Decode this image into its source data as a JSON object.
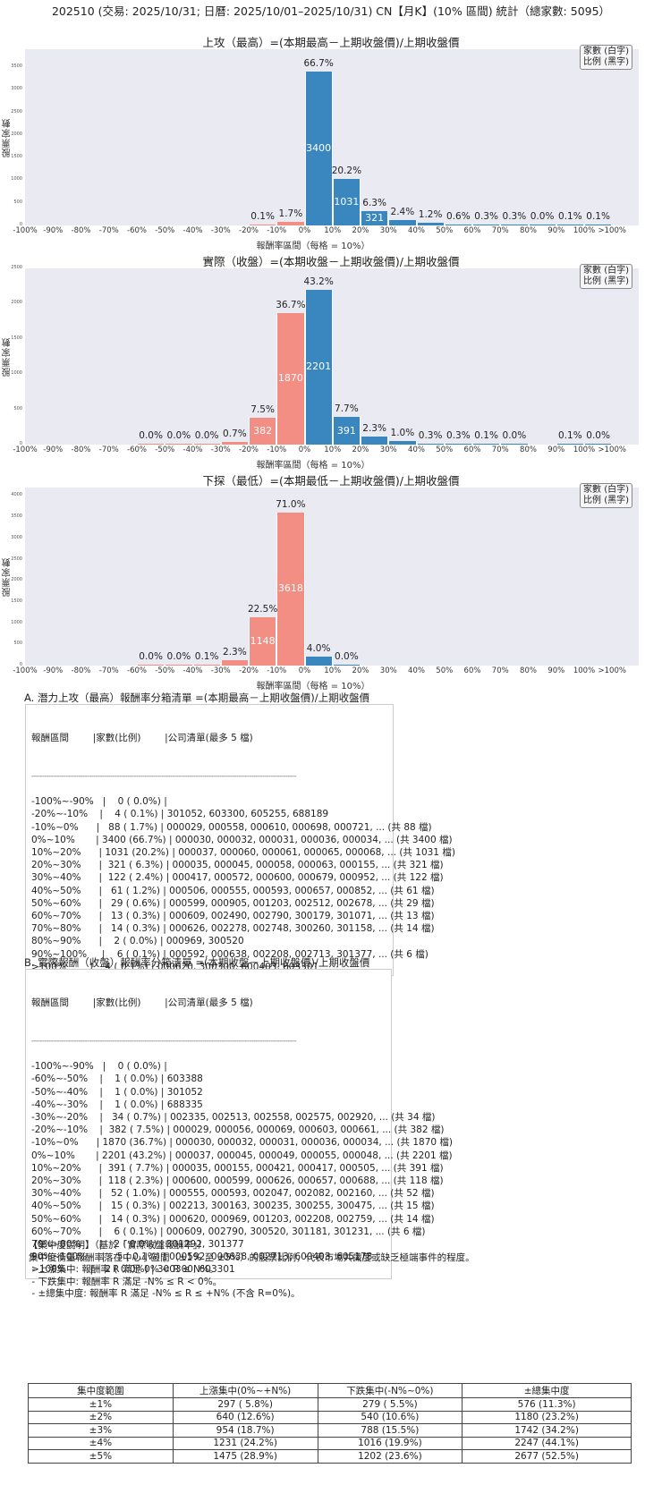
{
  "page": {
    "title": "202510 (交易: 2025/10/31; 日曆: 2025/10/01–2025/10/31) CN【月K】(10% 區間) 統計（總家數: 5095）"
  },
  "colors": {
    "up": "#3a87bf",
    "down": "#f28e84",
    "plot_bg": "#eaeaf2"
  },
  "charts": [
    {
      "title": "上攻（最高）=(本期最高－上期收盤價)/上期收盤價",
      "ylabel": "股票家數",
      "xlabel": "報酬率區間（每格 = 10%）",
      "legend": [
        "家數 (白字)",
        "比例 (黑字)"
      ],
      "yticks": [
        "0",
        "500",
        "1000",
        "1500",
        "2000",
        "2500",
        "3000",
        "3500"
      ]
    },
    {
      "title": "實際（收盤）=(本期收盤－上期收盤價)/上期收盤價",
      "ylabel": "股票家數",
      "xlabel": "報酬率區間（每格 = 10%）",
      "legend": [
        "家數 (白字)",
        "比例 (黑字)"
      ],
      "yticks": [
        "0",
        "500",
        "1000",
        "1500",
        "2000",
        "2500"
      ]
    },
    {
      "title": "下探（最低）=(本期最低－上期收盤價)/上期收盤價",
      "ylabel": "股票家數",
      "xlabel": "報酬率區間（每格 = 10%）",
      "legend": [
        "家數 (白字)",
        "比例 (黑字)"
      ],
      "yticks": [
        "0",
        "500",
        "1000",
        "1500",
        "2000",
        "2500",
        "3000",
        "3500",
        "4000"
      ]
    }
  ],
  "xticks": [
    "-100%",
    "-90%",
    "-80%",
    "-70%",
    "-60%",
    "-50%",
    "-40%",
    "-30%",
    "-20%",
    "-10%",
    "0%",
    "10%",
    "20%",
    "30%",
    "40%",
    "50%",
    "60%",
    "70%",
    "80%",
    "90%",
    "100%",
    ">100%"
  ],
  "chart_data": [
    {
      "type": "bar",
      "title": "上攻（最高）=(本期最高－上期收盤價)/上期收盤價",
      "xlabel": "報酬率區間（每格 = 10%）",
      "ylabel": "股票家數",
      "ylim": [
        0,
        3900
      ],
      "categories": [
        "-100%~-90%",
        "-90%~-80%",
        "-80%~-70%",
        "-70%~-60%",
        "-60%~-50%",
        "-50%~-40%",
        "-40%~-30%",
        "-30%~-20%",
        "-20%~-10%",
        "-10%~0%",
        "0%~10%",
        "10%~20%",
        "20%~30%",
        "30%~40%",
        "40%~50%",
        "50%~60%",
        "60%~70%",
        "70%~80%",
        "80%~90%",
        "90%~100%",
        ">100%"
      ],
      "values": [
        0,
        0,
        0,
        0,
        0,
        0,
        0,
        0,
        4,
        88,
        3400,
        1031,
        321,
        122,
        61,
        29,
        13,
        14,
        2,
        6,
        4
      ],
      "pct_labels": [
        "",
        "",
        "",
        "",
        "",
        "",
        "",
        "",
        "0.1%",
        "1.7%",
        "66.7%",
        "20.2%",
        "6.3%",
        "2.4%",
        "1.2%",
        "0.6%",
        "0.3%",
        "0.3%",
        "0.0%",
        "0.1%",
        "0.1%"
      ],
      "legend": [
        "家數 (白字)",
        "比例 (黑字)"
      ],
      "grid": false
    },
    {
      "type": "bar",
      "title": "實際（收盤）=(本期收盤－上期收盤價)/上期收盤價",
      "xlabel": "報酬率區間（每格 = 10%）",
      "ylabel": "股票家數",
      "ylim": [
        0,
        2500
      ],
      "categories": [
        "-100%~-90%",
        "-90%~-80%",
        "-80%~-70%",
        "-70%~-60%",
        "-60%~-50%",
        "-50%~-40%",
        "-40%~-30%",
        "-30%~-20%",
        "-20%~-10%",
        "-10%~0%",
        "0%~10%",
        "10%~20%",
        "20%~30%",
        "30%~40%",
        "40%~50%",
        "50%~60%",
        "60%~70%",
        "70%~80%",
        "80%~90%",
        "90%~100%",
        ">100%"
      ],
      "values": [
        0,
        0,
        0,
        0,
        1,
        1,
        1,
        34,
        382,
        1870,
        2201,
        391,
        118,
        52,
        15,
        14,
        6,
        2,
        0,
        5,
        2
      ],
      "pct_labels": [
        "",
        "",
        "",
        "",
        "0.0%",
        "0.0%",
        "0.0%",
        "0.7%",
        "7.5%",
        "36.7%",
        "43.2%",
        "7.7%",
        "2.3%",
        "1.0%",
        "0.3%",
        "0.3%",
        "0.1%",
        "0.0%",
        "",
        "0.1%",
        "0.0%"
      ],
      "legend": [
        "家數 (白字)",
        "比例 (黑字)"
      ],
      "grid": false
    },
    {
      "type": "bar",
      "title": "下探（最低）=(本期最低－上期收盤價)/上期收盤價",
      "xlabel": "報酬率區間（每格 = 10%）",
      "ylabel": "股票家數",
      "ylim": [
        0,
        4200
      ],
      "categories": [
        "-100%~-90%",
        "-90%~-80%",
        "-80%~-70%",
        "-70%~-60%",
        "-60%~-50%",
        "-50%~-40%",
        "-40%~-30%",
        "-30%~-20%",
        "-20%~-10%",
        "-10%~0%",
        "0%~10%",
        "10%~20%",
        "20%~30%",
        "30%~40%",
        "40%~50%",
        "50%~60%",
        "60%~70%",
        "70%~80%",
        "80%~90%",
        "90%~100%",
        ">100%"
      ],
      "values": [
        0,
        0,
        0,
        0,
        1,
        2,
        5,
        117,
        1148,
        3618,
        202,
        2,
        0,
        0,
        0,
        0,
        0,
        0,
        0,
        0,
        0
      ],
      "pct_labels": [
        "",
        "",
        "",
        "",
        "0.0%",
        "0.0%",
        "0.1%",
        "2.3%",
        "22.5%",
        "71.0%",
        "4.0%",
        "0.0%",
        "",
        "",
        "",
        "",
        "",
        "",
        "",
        "",
        ""
      ],
      "legend": [
        "家數 (白字)",
        "比例 (黑字)"
      ],
      "grid": false
    }
  ],
  "section_a": {
    "title": "A. 潛力上攻（最高）報酬率分箱清單 =(本期最高－上期收盤價)/上期收盤價",
    "header": "報酬區間        |家數(比例)        |公司清單(最多 5 檔)",
    "separator": "----------------------------------------------------------------------------------------------------------------------------",
    "rows": [
      "-100%~-90%   |    0 ( 0.0%) |",
      "-20%~-10%    |    4 ( 0.1%) | 301052, 603300, 605255, 688189",
      "-10%~0%      |   88 ( 1.7%) | 000029, 000558, 000610, 000698, 000721, ... (共 88 檔)",
      "0%~10%       | 3400 (66.7%) | 000030, 000032, 000031, 000036, 000034, ... (共 3400 檔)",
      "10%~20%      | 1031 (20.2%) | 000037, 000060, 000061, 000065, 000068, ... (共 1031 檔)",
      "20%~30%      |  321 ( 6.3%) | 000035, 000045, 000058, 000063, 000155, ... (共 321 檔)",
      "30%~40%      |  122 ( 2.4%) | 000417, 000572, 000600, 000679, 000952, ... (共 122 檔)",
      "40%~50%      |   61 ( 1.2%) | 000506, 000555, 000593, 000657, 000852, ... (共 61 檔)",
      "50%~60%      |   29 ( 0.6%) | 000599, 000905, 001203, 002512, 002678, ... (共 29 檔)",
      "60%~70%      |   13 ( 0.3%) | 000609, 002490, 002790, 300179, 301071, ... (共 13 檔)",
      "70%~80%      |   14 ( 0.3%) | 000626, 002278, 002748, 300260, 301158, ... (共 14 檔)",
      "80%~90%      |    2 ( 0.0%) | 000969, 300520",
      "90%~100%     |    6 ( 0.1%) | 000592, 000638, 002208, 002713, 301377, ... (共 6 檔)",
      ">100%        |    4 ( 0.1%) | 000620, 300300, 600403, 603301"
    ]
  },
  "section_b": {
    "title": "B. 實際報酬（收盤）報酬率分箱清單 =(本期收盤－上期收盤價)/上期收盤價",
    "header": "報酬區間        |家數(比例)        |公司清單(最多 5 檔)",
    "separator": "----------------------------------------------------------------------------------------------------------------------------",
    "rows": [
      "-100%~-90%   |    0 ( 0.0%) |",
      "-60%~-50%    |    1 ( 0.0%) | 603388",
      "-50%~-40%    |    1 ( 0.0%) | 301052",
      "-40%~-30%    |    1 ( 0.0%) | 688335",
      "-30%~-20%    |   34 ( 0.7%) | 002335, 002513, 002558, 002575, 002920, ... (共 34 檔)",
      "-20%~-10%    |  382 ( 7.5%) | 000029, 000056, 000069, 000603, 000661, ... (共 382 檔)",
      "-10%~0%      | 1870 (36.7%) | 000030, 000032, 000031, 000036, 000034, ... (共 1870 檔)",
      "0%~10%       | 2201 (43.2%) | 000037, 000045, 000049, 000055, 000048, ... (共 2201 檔)",
      "10%~20%      |  391 ( 7.7%) | 000035, 000155, 000421, 000417, 000505, ... (共 391 檔)",
      "20%~30%      |  118 ( 2.3%) | 000600, 000599, 000626, 000657, 000688, ... (共 118 檔)",
      "30%~40%      |   52 ( 1.0%) | 000555, 000593, 002047, 002082, 002160, ... (共 52 檔)",
      "40%~50%      |   15 ( 0.3%) | 002213, 300163, 300235, 300255, 300475, ... (共 15 檔)",
      "50%~60%      |   14 ( 0.3%) | 000620, 000969, 001203, 002208, 002759, ... (共 14 檔)",
      "60%~70%      |    6 ( 0.1%) | 000609, 002790, 300520, 301181, 301231, ... (共 6 檔)",
      "70%~80%      |    2 ( 0.0%) | 301292, 301377",
      "90%~100%     |    5 ( 0.1%) | 000592, 000638, 002713, 600403, 605178",
      ">100%        |    2 ( 0.0%) | 300300, 603301"
    ]
  },
  "concentration": {
    "title": "【集中度說明】（基於「實際收盤報酬率」）",
    "lines": [
      "集中度衡量報酬率落在中心小區間（±1% 至 ±5%）的股票比例，代表市場共識度或缺乏極端事件的程度。",
      " - 上漲集中: 報酬率 R 滿足 0% < R ≤ N%。",
      " - 下跌集中: 報酬率 R 滿足 -N% ≤ R < 0%。",
      " - ±總集中度: 報酬率 R 滿足 -N% ≤ R ≤ +N% (不含 R=0%)。"
    ],
    "table": {
      "headers": [
        "集中度範圍",
        "上漲集中(0%~+N%)",
        "下跌集中(-N%~0%)",
        "±總集中度"
      ],
      "rows": [
        [
          "±1%",
          "297 ( 5.8%)",
          "279 ( 5.5%)",
          "576 (11.3%)"
        ],
        [
          "±2%",
          "640 (12.6%)",
          "540 (10.6%)",
          "1180 (23.2%)"
        ],
        [
          "±3%",
          "954 (18.7%)",
          "788 (15.5%)",
          "1742 (34.2%)"
        ],
        [
          "±4%",
          "1231 (24.2%)",
          "1016 (19.9%)",
          "2247 (44.1%)"
        ],
        [
          "±5%",
          "1475 (28.9%)",
          "1202 (23.6%)",
          "2677 (52.5%)"
        ]
      ]
    }
  }
}
